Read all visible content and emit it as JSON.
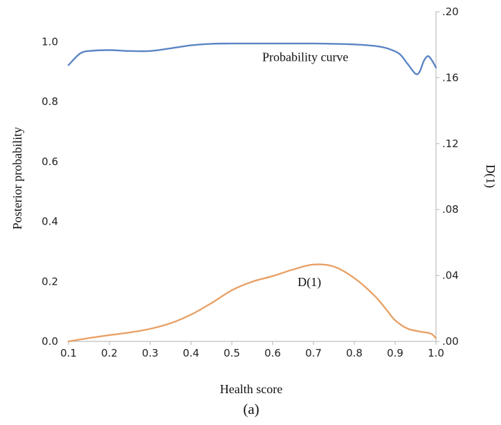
{
  "chart_data": {
    "type": "line",
    "xlabel": "Health score",
    "ylabel_left": "Posterior probability",
    "ylabel_right": "D(1)",
    "panel_label": "(a)",
    "xlim": [
      0.1,
      1.0
    ],
    "ylim_left": [
      0.0,
      1.1
    ],
    "ylim_right": [
      0.0,
      0.2
    ],
    "x_ticks": [
      "0.1",
      "0.2",
      "0.3",
      "0.4",
      "0.5",
      "0.6",
      "0.7",
      "0.8",
      "0.9",
      "1.0"
    ],
    "y_left_ticks": [
      "0.0",
      "0.2",
      "0.4",
      "0.6",
      "0.8",
      "1.0"
    ],
    "y_right_ticks": [
      ".00",
      ".04",
      ".08",
      ".12",
      ".16",
      ".20"
    ],
    "grid": false,
    "series": [
      {
        "name": "Probability curve",
        "axis": "left",
        "color": "#5b84c4",
        "x": [
          0.1,
          0.13,
          0.16,
          0.2,
          0.25,
          0.3,
          0.35,
          0.4,
          0.45,
          0.5,
          0.55,
          0.6,
          0.65,
          0.7,
          0.75,
          0.8,
          0.85,
          0.88,
          0.91,
          0.93,
          0.95,
          0.96,
          0.97,
          0.98,
          0.99,
          1.0
        ],
        "y": [
          0.922,
          0.962,
          0.97,
          0.972,
          0.969,
          0.969,
          0.978,
          0.988,
          0.993,
          0.994,
          0.994,
          0.994,
          0.994,
          0.994,
          0.993,
          0.991,
          0.986,
          0.978,
          0.96,
          0.927,
          0.893,
          0.9,
          0.935,
          0.952,
          0.938,
          0.914
        ]
      },
      {
        "name": "D(1)",
        "axis": "right",
        "color": "#e8a065",
        "x": [
          0.1,
          0.15,
          0.2,
          0.25,
          0.3,
          0.35,
          0.4,
          0.45,
          0.5,
          0.55,
          0.6,
          0.65,
          0.7,
          0.75,
          0.8,
          0.85,
          0.88,
          0.9,
          0.93,
          0.96,
          0.98,
          0.99,
          1.0
        ],
        "y": [
          0.0,
          0.002,
          0.0038,
          0.0054,
          0.0076,
          0.011,
          0.0162,
          0.0232,
          0.031,
          0.0362,
          0.0396,
          0.0436,
          0.0466,
          0.0454,
          0.0384,
          0.0276,
          0.0188,
          0.0128,
          0.0078,
          0.006,
          0.0052,
          0.0044,
          0.002
        ]
      }
    ],
    "annotations": [
      {
        "text": "Probability curve",
        "x": 0.68,
        "y_left": 0.935
      },
      {
        "text": "D(1)",
        "x": 0.69,
        "y_left": 0.185
      }
    ]
  }
}
